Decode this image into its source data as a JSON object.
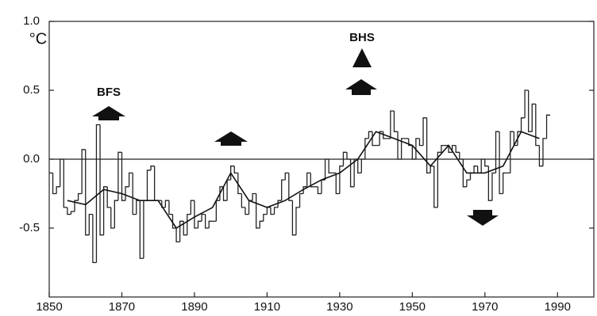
{
  "chart_data": {
    "type": "line",
    "y_unit": "°C",
    "xlim": [
      1850,
      2000
    ],
    "ylim": [
      -1.0,
      1.0
    ],
    "xticks": [
      1850,
      1870,
      1890,
      1910,
      1930,
      1950,
      1970,
      1990
    ],
    "yticks": [
      {
        "value": -0.5,
        "label": "-0.5"
      },
      {
        "value": 0,
        "label": "0.0"
      },
      0.5,
      {
        "value": 1,
        "label": "1.0"
      }
    ],
    "annotations": [
      "BFS",
      "BHS"
    ],
    "series": [
      {
        "style": "step",
        "color": "#222222",
        "x": [
          1850,
          1851,
          1852,
          1853,
          1854,
          1855,
          1856,
          1857,
          1858,
          1859,
          1860,
          1861,
          1862,
          1863,
          1864,
          1865,
          1866,
          1867,
          1868,
          1869,
          1870,
          1871,
          1872,
          1873,
          1874,
          1875,
          1876,
          1877,
          1878,
          1879,
          1880,
          1881,
          1882,
          1883,
          1884,
          1885,
          1886,
          1887,
          1888,
          1889,
          1890,
          1891,
          1892,
          1893,
          1894,
          1895,
          1896,
          1897,
          1898,
          1899,
          1900,
          1901,
          1902,
          1903,
          1904,
          1905,
          1906,
          1907,
          1908,
          1909,
          1910,
          1911,
          1912,
          1913,
          1914,
          1915,
          1916,
          1917,
          1918,
          1919,
          1920,
          1921,
          1922,
          1923,
          1924,
          1925,
          1926,
          1927,
          1928,
          1929,
          1930,
          1931,
          1932,
          1933,
          1934,
          1935,
          1936,
          1937,
          1938,
          1939,
          1940,
          1941,
          1942,
          1943,
          1944,
          1945,
          1946,
          1947,
          1948,
          1949,
          1950,
          1951,
          1952,
          1953,
          1954,
          1955,
          1956,
          1957,
          1958,
          1959,
          1960,
          1961,
          1962,
          1963,
          1964,
          1965,
          1966,
          1967,
          1968,
          1969,
          1970,
          1971,
          1972,
          1973,
          1974,
          1975,
          1976,
          1977,
          1978,
          1979,
          1980,
          1981,
          1982,
          1983,
          1984,
          1985,
          1986,
          1987
        ],
        "values": [
          -0.1,
          -0.25,
          -0.2,
          0.0,
          -0.35,
          -0.4,
          -0.38,
          -0.3,
          -0.25,
          0.07,
          -0.55,
          -0.4,
          -0.75,
          0.25,
          -0.55,
          -0.2,
          -0.35,
          -0.5,
          -0.3,
          0.05,
          -0.3,
          -0.2,
          -0.1,
          -0.4,
          -0.3,
          -0.72,
          -0.3,
          -0.08,
          -0.05,
          -0.3,
          -0.3,
          -0.35,
          -0.3,
          -0.4,
          -0.5,
          -0.6,
          -0.45,
          -0.55,
          -0.4,
          -0.3,
          -0.5,
          -0.45,
          -0.4,
          -0.5,
          -0.45,
          -0.45,
          -0.3,
          -0.2,
          -0.3,
          -0.15,
          -0.05,
          -0.1,
          -0.25,
          -0.35,
          -0.4,
          -0.3,
          -0.25,
          -0.5,
          -0.45,
          -0.4,
          -0.35,
          -0.4,
          -0.35,
          -0.3,
          -0.15,
          -0.1,
          -0.3,
          -0.55,
          -0.35,
          -0.25,
          -0.2,
          -0.1,
          -0.2,
          -0.2,
          -0.25,
          -0.15,
          0.0,
          -0.1,
          -0.1,
          -0.25,
          -0.05,
          0.05,
          0.0,
          -0.2,
          0.0,
          -0.1,
          0.0,
          0.15,
          0.2,
          0.1,
          0.1,
          0.2,
          0.15,
          0.15,
          0.35,
          0.2,
          0.0,
          0.15,
          0.15,
          0.1,
          0.0,
          0.15,
          0.1,
          0.3,
          -0.1,
          -0.05,
          -0.35,
          0.05,
          0.1,
          0.1,
          0.05,
          0.1,
          0.05,
          0.0,
          -0.2,
          -0.15,
          -0.1,
          -0.05,
          -0.1,
          0.0,
          -0.05,
          -0.3,
          -0.1,
          0.2,
          -0.25,
          -0.1,
          -0.1,
          0.2,
          0.1,
          0.2,
          0.3,
          0.5,
          0.2,
          0.4,
          0.1,
          -0.05,
          0.15,
          0.32
        ]
      },
      {
        "style": "smooth",
        "color": "#111111",
        "x": [
          1855,
          1860,
          1865,
          1870,
          1875,
          1880,
          1885,
          1890,
          1895,
          1900,
          1905,
          1910,
          1915,
          1920,
          1925,
          1930,
          1935,
          1940,
          1945,
          1950,
          1955,
          1960,
          1965,
          1970,
          1975,
          1980,
          1985
        ],
        "values": [
          -0.3,
          -0.33,
          -0.22,
          -0.25,
          -0.3,
          -0.3,
          -0.5,
          -0.42,
          -0.35,
          -0.1,
          -0.3,
          -0.35,
          -0.3,
          -0.22,
          -0.15,
          -0.1,
          0.0,
          0.2,
          0.15,
          0.1,
          -0.05,
          0.1,
          -0.1,
          -0.1,
          -0.05,
          0.2,
          0.15
        ]
      }
    ]
  }
}
